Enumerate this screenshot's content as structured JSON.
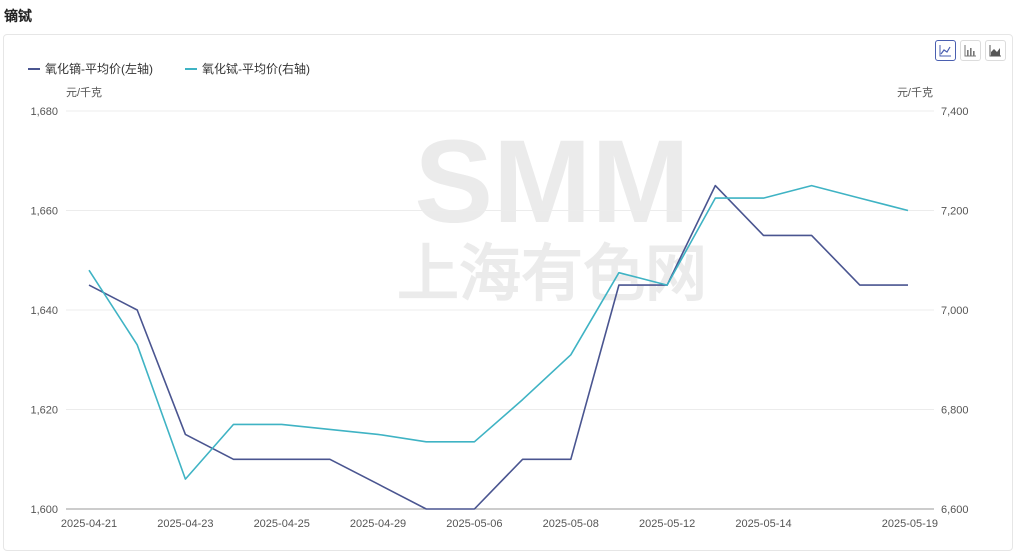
{
  "page": {
    "title": "镝铽"
  },
  "toolbar": {
    "buttons": [
      "line-chart-icon",
      "bar-chart-icon",
      "area-chart-icon"
    ]
  },
  "chart_data": {
    "type": "line",
    "x": [
      "2025-04-21",
      "2025-04-22",
      "2025-04-23",
      "2025-04-24",
      "2025-04-25",
      "2025-04-28",
      "2025-04-29",
      "2025-04-30",
      "2025-05-06",
      "2025-05-07",
      "2025-05-08",
      "2025-05-09",
      "2025-05-12",
      "2025-05-13",
      "2025-05-14",
      "2025-05-15",
      "2025-05-16",
      "2025-05-19"
    ],
    "x_tick_labels": [
      "2025-04-21",
      "2025-04-23",
      "2025-04-25",
      "2025-04-29",
      "2025-05-06",
      "2025-05-08",
      "2025-05-12",
      "2025-05-14",
      "2025-05-19"
    ],
    "x_tick_indices": [
      0,
      2,
      4,
      6,
      8,
      10,
      12,
      14,
      17
    ],
    "series": [
      {
        "name": "氧化镝-平均价(左轴)",
        "axis": "left",
        "color": "#4a5590",
        "values": [
          1645,
          1640,
          1615,
          1610,
          1610,
          1610,
          1605,
          1600,
          1600,
          1610,
          1610,
          1645,
          1645,
          1665,
          1655,
          1655,
          1645,
          1645
        ]
      },
      {
        "name": "氧化铽-平均价(右轴)",
        "axis": "right",
        "color": "#3fb3c4",
        "values": [
          7080,
          6930,
          6660,
          6770,
          6770,
          6760,
          6750,
          6735,
          6735,
          6820,
          6910,
          7075,
          7050,
          7225,
          7225,
          7250,
          7225,
          7200
        ]
      }
    ],
    "left_axis": {
      "unit": "元/千克",
      "min": 1600,
      "max": 1680,
      "ticks": [
        "1,600",
        "1,620",
        "1,640",
        "1,660",
        "1,680"
      ],
      "tick_values": [
        1600,
        1620,
        1640,
        1660,
        1680
      ]
    },
    "right_axis": {
      "unit": "元/千克",
      "min": 6600,
      "max": 7400,
      "ticks": [
        "6,600",
        "6,800",
        "7,000",
        "7,200",
        "7,400"
      ],
      "tick_values": [
        6600,
        6800,
        7000,
        7200,
        7400
      ]
    },
    "legend_position": "top-left",
    "grid": true,
    "watermark": {
      "line1": "SMM",
      "line2": "上海有色网"
    }
  }
}
